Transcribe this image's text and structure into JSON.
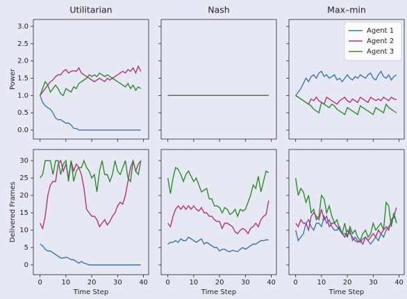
{
  "chart_data": [
    {
      "type": "line",
      "title": "Utilitarian",
      "ylabel": "Power",
      "x": [
        0,
        1,
        2,
        3,
        4,
        5,
        6,
        7,
        8,
        9,
        10,
        11,
        12,
        13,
        14,
        15,
        16,
        17,
        18,
        19,
        20,
        21,
        22,
        23,
        24,
        25,
        26,
        27,
        28,
        29,
        30,
        31,
        32,
        33,
        34,
        35,
        36,
        37,
        38,
        39
      ],
      "xlim": [
        -2.6,
        42
      ],
      "xticks": [
        0,
        10,
        20,
        30,
        40
      ],
      "ylim": [
        -0.26,
        3.2
      ],
      "yticks": [
        {
          "value": 0,
          "label": "0.0"
        },
        {
          "value": 0.5,
          "label": "0.5"
        },
        {
          "value": 1,
          "label": "1.0"
        },
        {
          "value": 1.5,
          "label": "1.5"
        },
        {
          "value": 2,
          "label": "2.0"
        },
        {
          "value": 2.5,
          "label": "2.5"
        },
        {
          "value": 3,
          "label": "3.0"
        }
      ],
      "series": [
        {
          "color": "#3b75af",
          "values": [
            1.0,
            0.8,
            0.7,
            0.65,
            0.6,
            0.5,
            0.35,
            0.3,
            0.3,
            0.25,
            0.2,
            0.2,
            0.15,
            0.05,
            0.05,
            0,
            0,
            0,
            0,
            0,
            0,
            0,
            0,
            0,
            0,
            0,
            0,
            0,
            0,
            0,
            0,
            0,
            0,
            0,
            0,
            0,
            0,
            0,
            0,
            0
          ]
        },
        {
          "color": "#b3307a",
          "values": [
            1.0,
            1.1,
            1.2,
            1.3,
            1.4,
            1.45,
            1.55,
            1.6,
            1.6,
            1.7,
            1.75,
            1.65,
            1.7,
            1.72,
            1.7,
            1.8,
            1.65,
            1.6,
            1.55,
            1.5,
            1.45,
            1.4,
            1.45,
            1.5,
            1.45,
            1.4,
            1.5,
            1.45,
            1.5,
            1.55,
            1.6,
            1.65,
            1.7,
            1.65,
            1.75,
            1.7,
            1.8,
            1.65,
            1.85,
            1.7
          ]
        },
        {
          "color": "#2c8a2c",
          "values": [
            1.0,
            1.2,
            1.4,
            1.3,
            1.1,
            1.2,
            1.3,
            1.2,
            1.05,
            1.0,
            1.2,
            1.15,
            1.1,
            1.25,
            1.2,
            1.35,
            1.4,
            1.45,
            1.5,
            1.6,
            1.55,
            1.6,
            1.55,
            1.65,
            1.6,
            1.55,
            1.6,
            1.55,
            1.5,
            1.45,
            1.4,
            1.35,
            1.3,
            1.25,
            1.35,
            1.2,
            1.3,
            1.15,
            1.25,
            1.2
          ]
        }
      ]
    },
    {
      "type": "line",
      "title": "Nash",
      "x": [
        0,
        1,
        2,
        3,
        4,
        5,
        6,
        7,
        8,
        9,
        10,
        11,
        12,
        13,
        14,
        15,
        16,
        17,
        18,
        19,
        20,
        21,
        22,
        23,
        24,
        25,
        26,
        27,
        28,
        29,
        30,
        31,
        32,
        33,
        34,
        35,
        36,
        37,
        38,
        39
      ],
      "xlim": [
        -2.6,
        42
      ],
      "xticks": [
        0,
        10,
        20,
        30,
        40
      ],
      "ylim": [
        -0.26,
        3.2
      ],
      "yticks": [
        0,
        0.5,
        1,
        1.5,
        2,
        2.5,
        3
      ],
      "series": [
        {
          "color": "#3b75af",
          "values": [
            1,
            1,
            1,
            1,
            1,
            1,
            1,
            1,
            1,
            1,
            1,
            1,
            1,
            1,
            1,
            1,
            1,
            1,
            1,
            1,
            1,
            1,
            1,
            1,
            1,
            1,
            1,
            1,
            1,
            1,
            1,
            1,
            1,
            1,
            1,
            1,
            1,
            1,
            1,
            1
          ]
        },
        {
          "color": "#b3307a",
          "values": [
            1,
            1,
            1,
            1,
            1,
            1,
            1,
            1,
            1,
            1,
            1,
            1,
            1,
            1,
            1,
            1,
            1,
            1,
            1,
            1,
            1,
            1,
            1,
            1,
            1,
            1,
            1,
            1,
            1,
            1,
            1,
            1,
            1,
            1,
            1,
            1,
            1,
            1,
            1,
            1
          ]
        },
        {
          "color": "#2c8a2c",
          "values": [
            1,
            1,
            1,
            1,
            1,
            1,
            1,
            1,
            1,
            1,
            1,
            1,
            1,
            1,
            1,
            1,
            1,
            1,
            1,
            1,
            1,
            1,
            1,
            1,
            1,
            1,
            1,
            1,
            1,
            1,
            1,
            1,
            1,
            1,
            1,
            1,
            1,
            1,
            1,
            1
          ]
        }
      ]
    },
    {
      "type": "line",
      "title": "Max–min",
      "legend": "upper right",
      "x": [
        0,
        1,
        2,
        3,
        4,
        5,
        6,
        7,
        8,
        9,
        10,
        11,
        12,
        13,
        14,
        15,
        16,
        17,
        18,
        19,
        20,
        21,
        22,
        23,
        24,
        25,
        26,
        27,
        28,
        29,
        30,
        31,
        32,
        33,
        34,
        35,
        36,
        37,
        38,
        39
      ],
      "xlim": [
        -2.6,
        42
      ],
      "xticks": [
        0,
        10,
        20,
        30,
        40
      ],
      "ylim": [
        -0.26,
        3.2
      ],
      "yticks": [
        0,
        0.5,
        1,
        1.5,
        2,
        2.5,
        3
      ],
      "series": [
        {
          "name": "Agent 1",
          "color": "#3b75af",
          "values": [
            1.0,
            1.1,
            1.2,
            1.35,
            1.5,
            1.4,
            1.55,
            1.6,
            1.5,
            1.65,
            1.7,
            1.55,
            1.6,
            1.5,
            1.55,
            1.6,
            1.45,
            1.5,
            1.4,
            1.5,
            1.6,
            1.5,
            1.45,
            1.55,
            1.5,
            1.6,
            1.55,
            1.5,
            1.6,
            1.65,
            1.5,
            1.45,
            1.6,
            1.7,
            1.55,
            1.5,
            1.6,
            1.45,
            1.55,
            1.6
          ]
        },
        {
          "name": "Agent 2",
          "color": "#b3307a",
          "values": [
            1.0,
            0.95,
            0.9,
            0.85,
            0.8,
            0.75,
            0.9,
            0.85,
            0.95,
            0.85,
            0.8,
            0.75,
            0.95,
            0.9,
            0.85,
            0.8,
            0.75,
            0.85,
            0.9,
            0.95,
            0.85,
            0.8,
            0.9,
            0.85,
            0.8,
            0.95,
            0.9,
            0.85,
            0.8,
            0.95,
            0.9,
            0.85,
            0.9,
            0.85,
            0.95,
            0.9,
            0.85,
            0.95,
            0.9,
            0.88
          ]
        },
        {
          "name": "Agent 3",
          "color": "#2c8a2c",
          "values": [
            1.0,
            0.95,
            0.9,
            0.85,
            0.8,
            0.75,
            0.7,
            0.6,
            0.55,
            0.5,
            0.8,
            0.75,
            0.7,
            0.65,
            0.75,
            0.7,
            0.6,
            0.55,
            0.5,
            0.45,
            0.65,
            0.6,
            0.55,
            0.5,
            0.45,
            0.7,
            0.65,
            0.6,
            0.55,
            0.5,
            0.45,
            0.65,
            0.6,
            0.55,
            0.5,
            0.75,
            0.65,
            0.6,
            0.55,
            0.5
          ]
        }
      ]
    },
    {
      "type": "line",
      "ylabel": "Delivered Frames",
      "xlabel": "Time Step",
      "x": [
        0,
        1,
        2,
        3,
        4,
        5,
        6,
        7,
        8,
        9,
        10,
        11,
        12,
        13,
        14,
        15,
        16,
        17,
        18,
        19,
        20,
        21,
        22,
        23,
        24,
        25,
        26,
        27,
        28,
        29,
        30,
        31,
        32,
        33,
        34,
        35,
        36,
        37,
        38,
        39
      ],
      "xlim": [
        -2.6,
        42
      ],
      "xticks": [
        0,
        10,
        20,
        30,
        40
      ],
      "ylim": [
        -2.8,
        33.2
      ],
      "yticks": [
        0,
        5,
        10,
        15,
        20,
        25,
        30
      ],
      "series": [
        {
          "color": "#3b75af",
          "values": [
            6,
            5.5,
            4.5,
            4,
            4,
            3.5,
            3,
            2.5,
            2,
            2,
            2.2,
            2,
            1.5,
            1.5,
            1,
            0.5,
            1,
            0.5,
            0.3,
            0,
            0,
            0,
            0,
            0,
            0,
            0,
            0,
            0,
            0,
            0,
            0,
            0,
            0,
            0,
            0,
            0,
            0,
            0,
            0,
            0
          ]
        },
        {
          "color": "#b3307a",
          "values": [
            12,
            10.5,
            14,
            20,
            23,
            24,
            24,
            29,
            30,
            27,
            29,
            25,
            30,
            27,
            29,
            28,
            26,
            22,
            16,
            15,
            14,
            14,
            13,
            11,
            12,
            13,
            11.5,
            12.5,
            14,
            15,
            17,
            18,
            17.5,
            20,
            24,
            28,
            30,
            27,
            29,
            30
          ]
        },
        {
          "color": "#2c8a2c",
          "values": [
            25,
            26,
            30,
            30,
            30,
            26,
            30,
            30,
            26,
            29,
            30,
            24,
            30,
            24,
            27,
            28,
            28,
            30,
            28,
            27,
            25,
            26,
            21,
            27,
            30,
            26,
            26,
            24,
            26,
            30,
            27,
            26,
            28,
            30,
            25,
            24,
            30,
            27,
            26,
            30
          ]
        }
      ]
    },
    {
      "type": "line",
      "xlabel": "Time Step",
      "x": [
        0,
        1,
        2,
        3,
        4,
        5,
        6,
        7,
        8,
        9,
        10,
        11,
        12,
        13,
        14,
        15,
        16,
        17,
        18,
        19,
        20,
        21,
        22,
        23,
        24,
        25,
        26,
        27,
        28,
        29,
        30,
        31,
        32,
        33,
        34,
        35,
        36,
        37,
        38,
        39
      ],
      "xlim": [
        -2.6,
        42
      ],
      "xticks": [
        0,
        10,
        20,
        30,
        40
      ],
      "ylim": [
        -2.8,
        33.2
      ],
      "yticks": [
        0,
        5,
        10,
        15,
        20,
        25,
        30
      ],
      "series": [
        {
          "color": "#3b75af",
          "values": [
            6,
            6.5,
            6.5,
            7,
            6.5,
            7.5,
            7,
            7,
            8,
            7.5,
            7,
            6.5,
            7,
            7.5,
            6,
            6.5,
            6,
            5.5,
            5,
            5,
            4,
            4.5,
            4.5,
            4,
            3.8,
            4.2,
            4,
            3.8,
            4.5,
            5,
            4.5,
            5,
            5.5,
            6,
            6,
            6.5,
            7,
            7,
            7.2,
            7.2
          ]
        },
        {
          "color": "#b3307a",
          "values": [
            12,
            11,
            14,
            16,
            17,
            16,
            17,
            16,
            17,
            16,
            17,
            16,
            15.5,
            16.5,
            15,
            15,
            14,
            14,
            13,
            12.5,
            12.5,
            10.5,
            12,
            12,
            11.5,
            11,
            9.5,
            9,
            10,
            10.5,
            10,
            9,
            10.5,
            11,
            12,
            11,
            13,
            14,
            14.5,
            18.5
          ]
        },
        {
          "color": "#2c8a2c",
          "values": [
            25,
            20.5,
            25,
            28,
            27.5,
            26,
            24,
            26,
            27,
            25.5,
            24,
            25,
            23,
            21,
            21.5,
            22,
            19,
            19,
            17,
            17,
            16.5,
            15,
            16.5,
            16,
            14.5,
            15,
            16,
            14,
            16,
            15.5,
            16,
            18,
            20,
            23,
            22,
            25.5,
            21,
            24,
            27,
            26.5
          ]
        }
      ]
    },
    {
      "type": "line",
      "xlabel": "Time Step",
      "x": [
        0,
        1,
        2,
        3,
        4,
        5,
        6,
        7,
        8,
        9,
        10,
        11,
        12,
        13,
        14,
        15,
        16,
        17,
        18,
        19,
        20,
        21,
        22,
        23,
        24,
        25,
        26,
        27,
        28,
        29,
        30,
        31,
        32,
        33,
        34,
        35,
        36,
        37,
        38,
        39
      ],
      "xlim": [
        -2.6,
        42
      ],
      "xticks": [
        0,
        10,
        20,
        30,
        40
      ],
      "ylim": [
        -2.8,
        33.2
      ],
      "yticks": [
        0,
        5,
        10,
        15,
        20,
        25,
        30
      ],
      "series": [
        {
          "color": "#3b75af",
          "values": [
            10,
            7,
            8,
            9,
            12,
            13,
            11,
            10,
            12,
            12,
            11,
            14,
            12,
            13,
            11,
            10,
            10,
            11,
            9,
            9,
            8,
            10,
            7,
            8,
            7,
            6.5,
            7.5,
            8,
            7,
            6,
            7,
            8,
            7,
            9,
            8,
            10,
            11,
            12,
            14,
            12.5
          ]
        },
        {
          "color": "#b3307a",
          "values": [
            12,
            11,
            13,
            12,
            12,
            10,
            14,
            15,
            14,
            13,
            16,
            13,
            14,
            11,
            12,
            12,
            11,
            10,
            9,
            8,
            10,
            9,
            8,
            7,
            6.5,
            7,
            6,
            8,
            7,
            8,
            9,
            8,
            10,
            9,
            10,
            11,
            10,
            13,
            14,
            16.5
          ]
        },
        {
          "color": "#2c8a2c",
          "values": [
            25,
            20,
            22,
            21,
            18,
            20,
            15,
            16,
            13,
            14,
            20,
            19,
            15,
            17,
            14,
            12,
            13,
            10,
            9,
            12,
            8,
            11,
            9,
            10,
            8,
            7,
            9,
            10,
            8,
            9,
            12,
            10,
            11,
            12,
            10,
            18,
            17,
            11,
            15,
            12
          ]
        }
      ]
    }
  ]
}
